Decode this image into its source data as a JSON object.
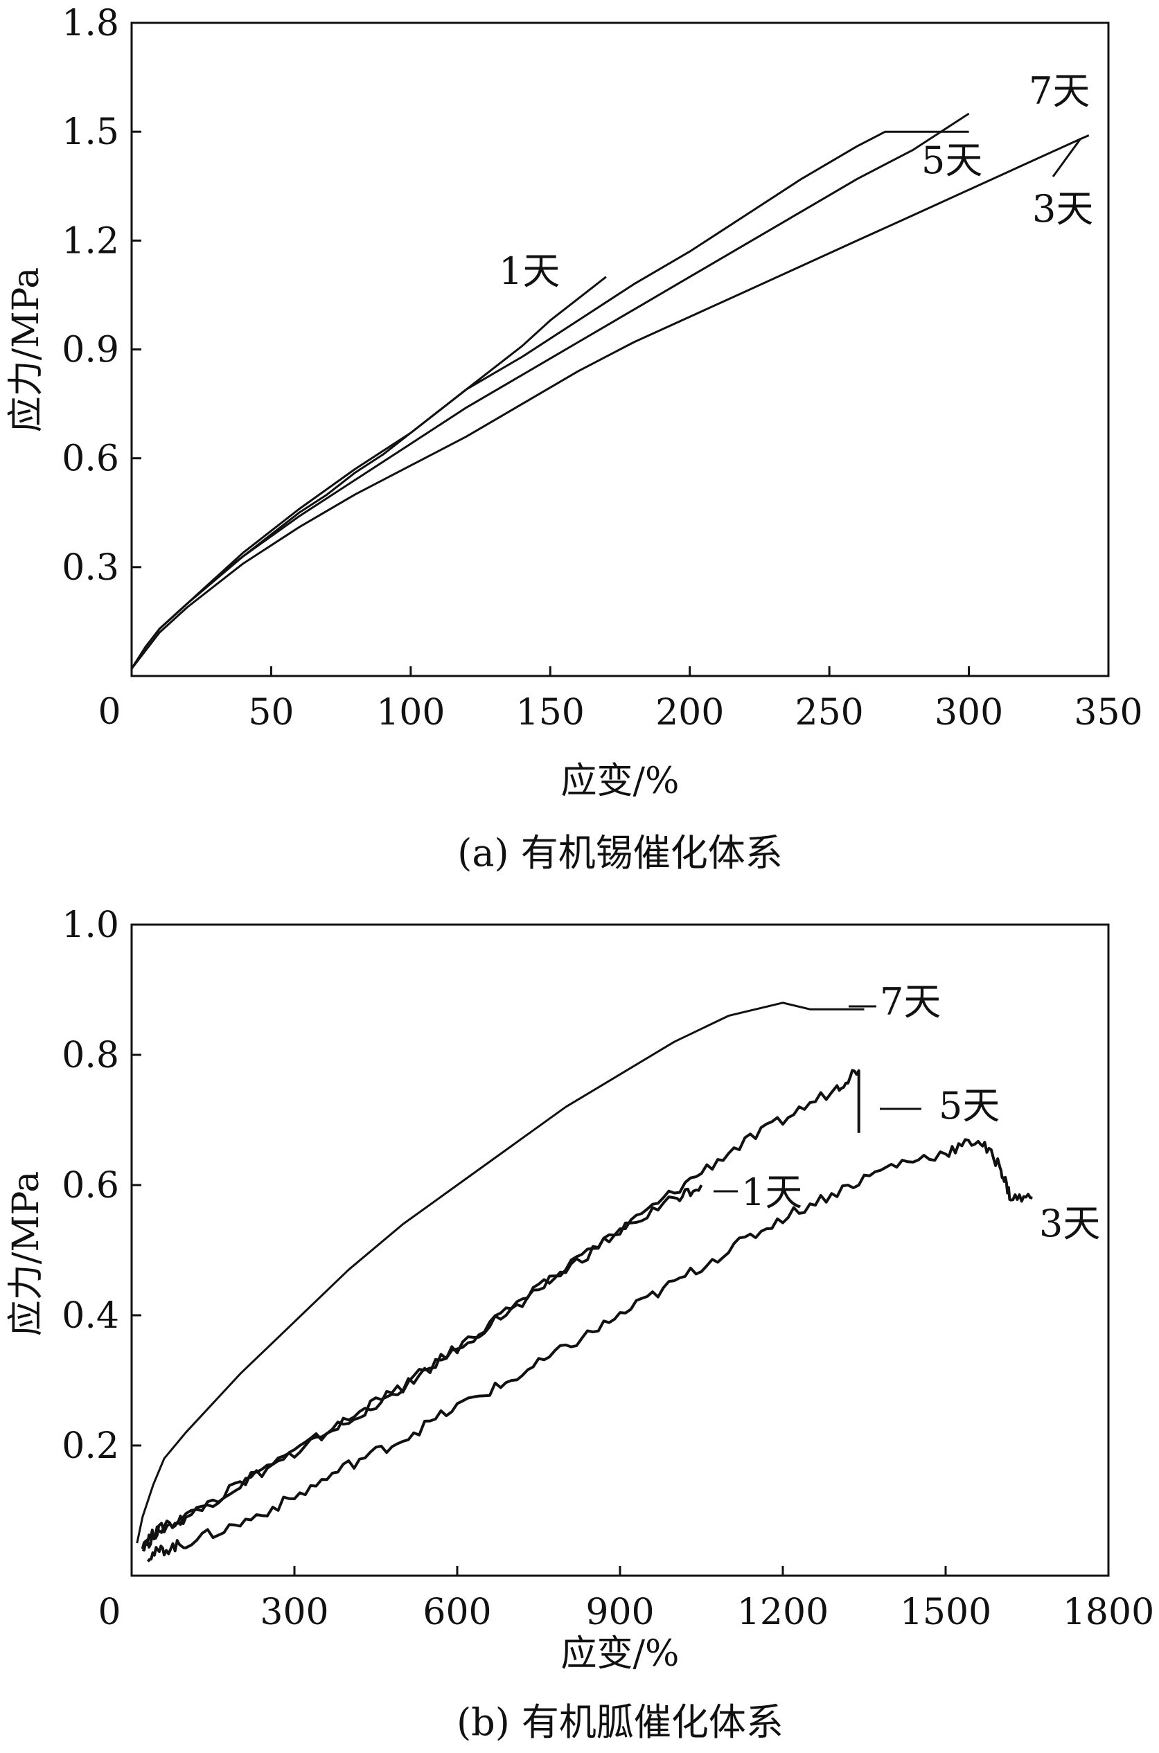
{
  "chart_data": [
    {
      "type": "line",
      "caption": "(a) 有机锡催化体系",
      "xlabel": "应变/%",
      "ylabel": "应力/MPa",
      "xlim": [
        0,
        350
      ],
      "ylim": [
        0,
        1.8
      ],
      "xticks": [
        "0",
        "50",
        "100",
        "150",
        "200",
        "250",
        "300",
        "350"
      ],
      "yticks": [
        "0.3",
        "0.6",
        "0.9",
        "1.2",
        "1.5",
        "1.8"
      ],
      "series": [
        {
          "name": "1天",
          "label": "1天",
          "x": [
            0,
            5,
            10,
            20,
            30,
            40,
            50,
            60,
            70,
            80,
            90,
            100,
            110,
            120,
            130,
            140,
            150,
            160,
            170
          ],
          "y": [
            0.02,
            0.08,
            0.13,
            0.2,
            0.27,
            0.33,
            0.39,
            0.45,
            0.5,
            0.56,
            0.61,
            0.67,
            0.73,
            0.79,
            0.85,
            0.91,
            0.98,
            1.04,
            1.1
          ]
        },
        {
          "name": "7天",
          "label": "7天",
          "x": [
            0,
            5,
            10,
            20,
            40,
            60,
            80,
            100,
            120,
            140,
            160,
            180,
            200,
            220,
            240,
            260,
            270,
            290,
            300
          ],
          "y": [
            0.02,
            0.08,
            0.13,
            0.2,
            0.34,
            0.46,
            0.57,
            0.67,
            0.79,
            0.88,
            0.98,
            1.08,
            1.17,
            1.27,
            1.37,
            1.46,
            1.5,
            1.5,
            1.5
          ]
        },
        {
          "name": "5天",
          "label": "5天",
          "x": [
            0,
            5,
            10,
            20,
            40,
            60,
            80,
            100,
            120,
            140,
            160,
            180,
            200,
            220,
            240,
            260,
            280,
            300
          ],
          "y": [
            0.02,
            0.08,
            0.13,
            0.2,
            0.33,
            0.44,
            0.54,
            0.64,
            0.74,
            0.83,
            0.92,
            1.01,
            1.1,
            1.19,
            1.28,
            1.37,
            1.45,
            1.55
          ]
        },
        {
          "name": "3天",
          "label": "3天",
          "x": [
            0,
            5,
            10,
            20,
            40,
            60,
            80,
            100,
            120,
            140,
            160,
            180,
            200,
            220,
            240,
            260,
            280,
            300,
            320,
            340,
            343
          ],
          "y": [
            0.02,
            0.07,
            0.12,
            0.19,
            0.31,
            0.41,
            0.5,
            0.58,
            0.66,
            0.75,
            0.84,
            0.92,
            0.99,
            1.06,
            1.13,
            1.2,
            1.27,
            1.34,
            1.41,
            1.48,
            1.49
          ]
        }
      ]
    },
    {
      "type": "line",
      "caption": "(b) 有机胍催化体系",
      "xlabel": "应变/%",
      "ylabel": "应力/MPa",
      "xlim": [
        0,
        1800
      ],
      "ylim": [
        0,
        1.0
      ],
      "xticks": [
        "0",
        "300",
        "600",
        "900",
        "1200",
        "1500",
        "1800"
      ],
      "yticks": [
        "0.2",
        "0.4",
        "0.6",
        "0.8",
        "1.0"
      ],
      "series": [
        {
          "name": "7天",
          "label": "7天",
          "x": [
            10,
            20,
            40,
            60,
            100,
            200,
            300,
            400,
            500,
            600,
            700,
            800,
            900,
            1000,
            1100,
            1200,
            1250,
            1350
          ],
          "y": [
            0.05,
            0.09,
            0.14,
            0.18,
            0.22,
            0.31,
            0.39,
            0.47,
            0.54,
            0.6,
            0.66,
            0.72,
            0.77,
            0.82,
            0.86,
            0.88,
            0.87,
            0.87
          ]
        },
        {
          "name": "5天",
          "label": "5天",
          "x": [
            20,
            50,
            100,
            200,
            300,
            400,
            500,
            600,
            700,
            800,
            900,
            1000,
            1100,
            1200,
            1300,
            1340,
            1340
          ],
          "y": [
            0.05,
            0.07,
            0.09,
            0.14,
            0.19,
            0.24,
            0.29,
            0.35,
            0.41,
            0.47,
            0.53,
            0.59,
            0.65,
            0.7,
            0.75,
            0.78,
            0.68
          ]
        },
        {
          "name": "1天",
          "label": "1天",
          "x": [
            20,
            50,
            100,
            200,
            300,
            400,
            500,
            600,
            700,
            800,
            900,
            1000,
            1050
          ],
          "y": [
            0.04,
            0.07,
            0.09,
            0.14,
            0.19,
            0.24,
            0.29,
            0.35,
            0.41,
            0.47,
            0.53,
            0.58,
            0.6
          ]
        },
        {
          "name": "3天",
          "label": "3天",
          "x": [
            30,
            60,
            100,
            200,
            300,
            400,
            500,
            600,
            700,
            800,
            900,
            1000,
            1100,
            1200,
            1300,
            1400,
            1500,
            1560,
            1600,
            1620,
            1660
          ],
          "y": [
            0.03,
            0.04,
            0.05,
            0.08,
            0.12,
            0.17,
            0.21,
            0.26,
            0.3,
            0.35,
            0.4,
            0.45,
            0.5,
            0.55,
            0.59,
            0.63,
            0.65,
            0.67,
            0.63,
            0.58,
            0.58
          ]
        }
      ]
    }
  ]
}
